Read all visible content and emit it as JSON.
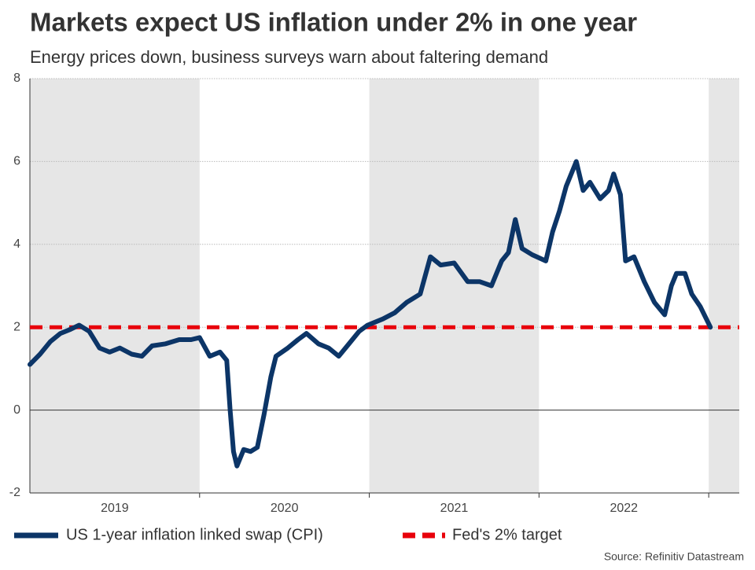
{
  "chart_data": {
    "type": "line",
    "title": "Markets expect US inflation under 2% in one year",
    "subtitle": "Energy prices down, business surveys warn about faltering demand",
    "source": "Source: Refinitiv Datastream",
    "xlim": [
      2019.0,
      2023.18
    ],
    "xticks": [
      {
        "value": 2019.5,
        "label": "2019"
      },
      {
        "value": 2020.5,
        "label": "2020"
      },
      {
        "value": 2021.5,
        "label": "2021"
      },
      {
        "value": 2022.5,
        "label": "2022"
      }
    ],
    "ylim": [
      -2,
      8
    ],
    "yticks": [
      -2,
      0,
      2,
      4,
      6,
      8
    ],
    "grid": true,
    "legend": "bottom",
    "x": [
      2019.0,
      2019.06,
      2019.12,
      2019.18,
      2019.24,
      2019.29,
      2019.35,
      2019.41,
      2019.47,
      2019.53,
      2019.6,
      2019.66,
      2019.72,
      2019.8,
      2019.88,
      2019.95,
      2020.0,
      2020.06,
      2020.12,
      2020.16,
      2020.18,
      2020.2,
      2020.22,
      2020.26,
      2020.3,
      2020.34,
      2020.38,
      2020.42,
      2020.45,
      2020.52,
      2020.58,
      2020.63,
      2020.7,
      2020.76,
      2020.82,
      2020.88,
      2020.94,
      2020.99,
      2021.08,
      2021.15,
      2021.22,
      2021.3,
      2021.36,
      2021.42,
      2021.5,
      2021.58,
      2021.65,
      2021.72,
      2021.78,
      2021.82,
      2021.86,
      2021.9,
      2021.96,
      2022.04,
      2022.08,
      2022.12,
      2022.16,
      2022.22,
      2022.26,
      2022.3,
      2022.36,
      2022.41,
      2022.44,
      2022.48,
      2022.51,
      2022.56,
      2022.62,
      2022.68,
      2022.74,
      2022.78,
      2022.81,
      2022.86,
      2022.9,
      2022.95,
      2023.01
    ],
    "series": [
      {
        "name": "US 1-year inflation linked swap (CPI)",
        "color": "#0c3567",
        "values": [
          1.1,
          1.35,
          1.65,
          1.85,
          1.95,
          2.05,
          1.9,
          1.5,
          1.4,
          1.5,
          1.35,
          1.3,
          1.55,
          1.6,
          1.7,
          1.7,
          1.75,
          1.3,
          1.4,
          1.2,
          0.0,
          -1.0,
          -1.35,
          -0.95,
          -1.0,
          -0.9,
          -0.1,
          0.8,
          1.3,
          1.5,
          1.7,
          1.85,
          1.6,
          1.5,
          1.3,
          1.6,
          1.9,
          2.05,
          2.2,
          2.35,
          2.6,
          2.8,
          3.7,
          3.5,
          3.55,
          3.1,
          3.1,
          3.0,
          3.6,
          3.8,
          4.6,
          3.9,
          3.75,
          3.6,
          4.3,
          4.8,
          5.4,
          6.0,
          5.3,
          5.5,
          5.1,
          5.3,
          5.7,
          5.2,
          3.6,
          3.7,
          3.1,
          2.6,
          2.3,
          3.0,
          3.3,
          3.3,
          2.8,
          2.5,
          2.0
        ]
      }
    ],
    "target": {
      "name": "Fed's 2% target",
      "color": "#e8000b",
      "value": 2
    }
  }
}
